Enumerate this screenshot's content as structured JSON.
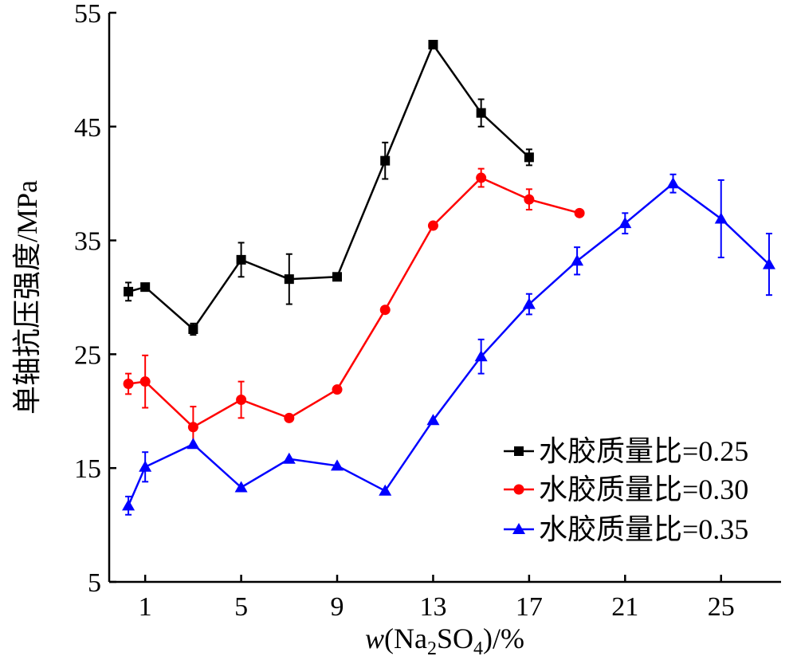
{
  "chart_data": {
    "type": "line",
    "title": "",
    "xlabel": {
      "italic": "w",
      "pre": "(Na",
      "sub1": "2",
      "mid": "SO",
      "sub2": "4",
      "post": ")/%"
    },
    "ylabel": "单轴抗压强度/MPa",
    "xlim": [
      -0.5,
      27.5
    ],
    "ylim": [
      5,
      55
    ],
    "xticks": [
      1,
      5,
      9,
      13,
      17,
      21,
      25
    ],
    "yticks": [
      5,
      15,
      25,
      35,
      45,
      55
    ],
    "grid": false,
    "legend_position": "bottom-right",
    "series": [
      {
        "name": "水胶质量比=0.25",
        "color": "#000000",
        "marker": "square",
        "x": [
          0.3,
          1,
          3,
          5,
          7,
          9,
          11,
          13,
          15,
          17
        ],
        "y": [
          30.5,
          30.9,
          27.2,
          33.3,
          31.6,
          31.8,
          42.0,
          52.2,
          46.2,
          42.3
        ],
        "err": [
          0.8,
          0,
          0.5,
          1.5,
          2.2,
          0,
          1.6,
          0,
          1.2,
          0.7
        ]
      },
      {
        "name": "水胶质量比=0.30",
        "color": "#ff0000",
        "marker": "circle",
        "x": [
          0.3,
          1,
          3,
          5,
          7,
          9,
          11,
          13,
          15,
          17,
          19.1
        ],
        "y": [
          22.4,
          22.6,
          18.6,
          21.0,
          19.4,
          21.9,
          28.9,
          36.3,
          40.5,
          38.6,
          37.4
        ],
        "err": [
          0.9,
          2.3,
          1.8,
          1.6,
          0,
          0,
          0,
          0,
          0.8,
          0.9,
          0
        ]
      },
      {
        "name": "水胶质量比=0.35",
        "color": "#0000ff",
        "marker": "triangle",
        "x": [
          0.3,
          1,
          3,
          5,
          7,
          9,
          11,
          13,
          15,
          17,
          19,
          21,
          23,
          25,
          27
        ],
        "y": [
          11.7,
          15.1,
          17.1,
          13.3,
          15.8,
          15.2,
          13.0,
          19.2,
          24.8,
          29.4,
          33.2,
          36.5,
          40.0,
          36.9,
          32.9
        ],
        "err": [
          0.8,
          1.3,
          0,
          0,
          0,
          0,
          0,
          0,
          1.5,
          0.9,
          1.2,
          0.9,
          0.8,
          3.4,
          2.7
        ]
      }
    ]
  }
}
